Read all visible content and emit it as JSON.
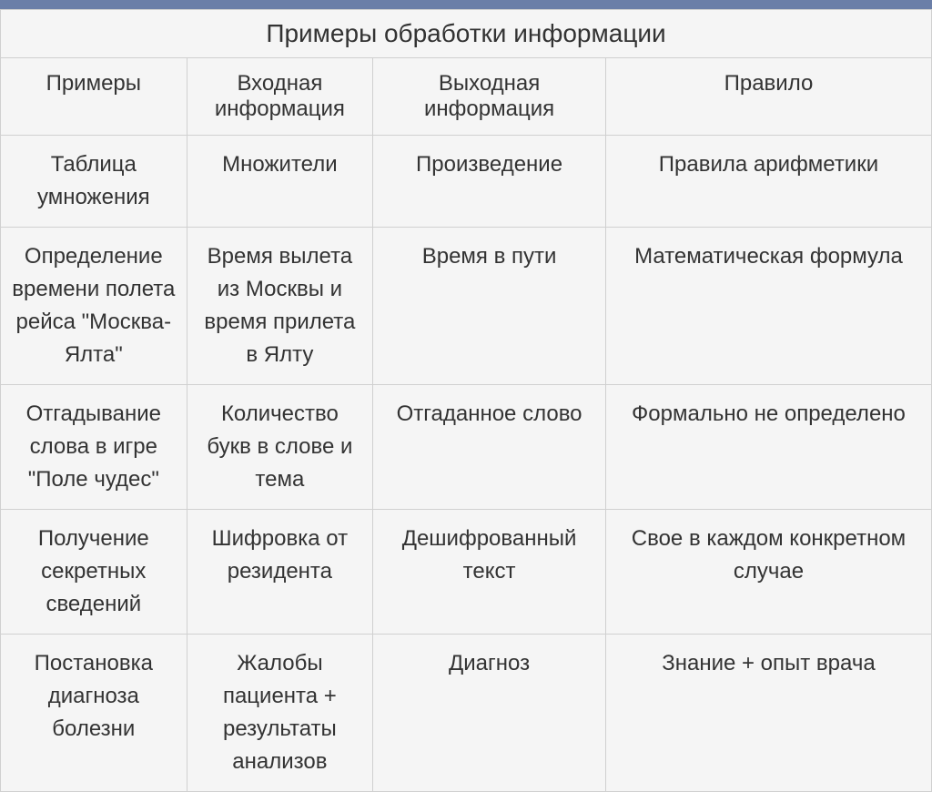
{
  "table": {
    "title": "Примеры обработки информации",
    "columns": [
      "Примеры",
      "Входная информация",
      "Выходная информация",
      "Правило"
    ],
    "rows": [
      [
        "Таблица умножения",
        "Множители",
        "Произведение",
        "Правила арифметики"
      ],
      [
        "Определение времени полета рейса \"Москва-Ялта\"",
        "Время вылета из Москвы и время прилета в Ялту",
        "Время в пути",
        "Математическая формула"
      ],
      [
        "Отгадывание слова в игре \"Поле чудес\"",
        "Количество букв в слове и тема",
        "Отгаданное слово",
        "Формально не определено"
      ],
      [
        "Получение секретных сведений",
        "Шифровка от резидента",
        "Дешифрованный текст",
        "Свое в каждом конкретном случае"
      ],
      [
        "Постановка диагноза болезни",
        "Жалобы пациента + результаты анализов",
        "Диагноз",
        "Знание + опыт врача"
      ]
    ],
    "colors": {
      "top_bar": "#6b7fa8",
      "background": "#f5f5f5",
      "border": "#d0d0d0",
      "text": "#333333"
    },
    "title_fontsize": 28,
    "cell_fontsize": 24,
    "column_widths": [
      "20%",
      "20%",
      "25%",
      "35%"
    ]
  }
}
